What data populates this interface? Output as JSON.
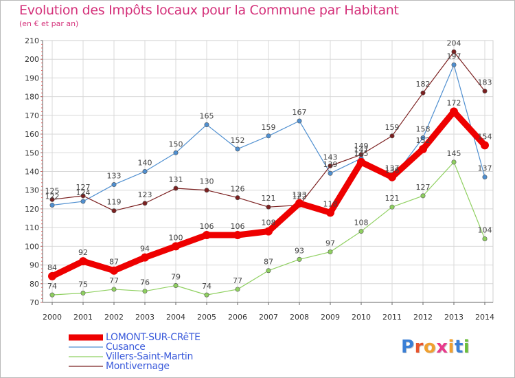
{
  "title": "Evolution des Impôts locaux pour la Commune par Habitant",
  "subtitle": "(en € et par an)",
  "logo": {
    "text": "Proxiti",
    "colors": [
      "#3a7fd5",
      "#e8542c",
      "#f0a030",
      "#e83a8c",
      "#f0a030",
      "#3a7fd5",
      "#6bbf3a"
    ]
  },
  "chart_data": {
    "type": "line",
    "x": [
      "2000",
      "2001",
      "2002",
      "2003",
      "2004",
      "2005",
      "2006",
      "2007",
      "2008",
      "2009",
      "2010",
      "2011",
      "2012",
      "2013",
      "2014"
    ],
    "ylim": [
      70,
      210
    ],
    "yticks": [
      "70",
      "80",
      "90",
      "100",
      "110",
      "120",
      "130",
      "140",
      "150",
      "160",
      "170",
      "180",
      "190",
      "200",
      "210"
    ],
    "grid": true,
    "legend_position": "bottom-left",
    "series": [
      {
        "name": "LOMONT-SUR-CRêTE",
        "color": "#ee0000",
        "values": [
          84,
          92,
          87,
          94,
          100,
          106,
          106,
          108,
          123,
          118,
          145,
          137,
          152,
          172,
          154
        ],
        "labels": [
          "84",
          "92",
          "87",
          "94",
          "100",
          "106",
          "106",
          "108",
          "123",
          "118",
          "145",
          "137",
          "152",
          "172",
          "154"
        ]
      },
      {
        "name": "Cusance",
        "color": "#4f8fd0",
        "values": [
          122,
          124,
          133,
          140,
          150,
          165,
          152,
          159,
          167,
          139,
          147,
          136,
          158,
          197,
          137
        ],
        "labels": [
          "122",
          "124",
          "133",
          "140",
          "150",
          "165",
          "152",
          "159",
          "167",
          "139",
          "147",
          "136",
          "158",
          "197",
          "137"
        ]
      },
      {
        "name": "Villers-Saint-Martin",
        "color": "#8fd060",
        "values": [
          74,
          75,
          77,
          76,
          79,
          74,
          77,
          87,
          93,
          97,
          108,
          121,
          127,
          145,
          104
        ],
        "labels": [
          "74",
          "75",
          "77",
          "76",
          "79",
          "74",
          "77",
          "87",
          "93",
          "97",
          "108",
          "121",
          "127",
          "145",
          "104"
        ]
      },
      {
        "name": "Montivernage",
        "color": "#7b2020",
        "values": [
          125,
          127,
          119,
          123,
          131,
          130,
          126,
          121,
          122,
          143,
          149,
          159,
          182,
          204,
          183
        ],
        "labels": [
          "125",
          "127",
          "119",
          "123",
          "131",
          "130",
          "126",
          "121",
          "122",
          "143",
          "149",
          "159",
          "182",
          "204",
          "183"
        ]
      }
    ]
  }
}
